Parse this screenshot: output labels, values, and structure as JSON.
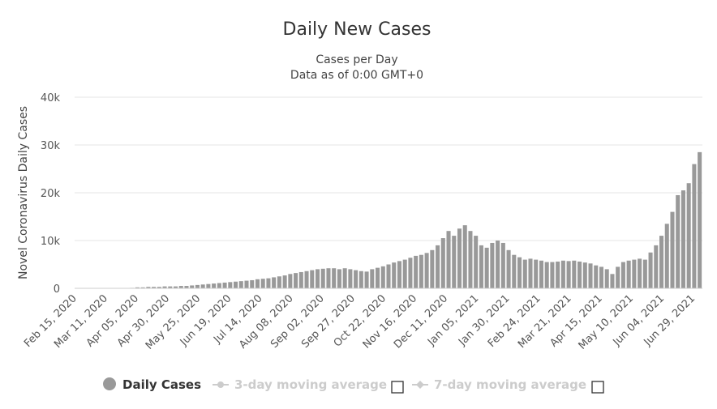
{
  "chart_data": {
    "type": "bar",
    "title": "Daily New Cases",
    "subtitle": "Cases per Day",
    "subtitle2": "Data as of 0:00 GMT+0",
    "ylabel": "Novel Coronavirus Daily Cases",
    "xlabel": "",
    "ylim": [
      0,
      40000
    ],
    "grid": true,
    "y_ticks": [
      {
        "value": 0,
        "label": "0"
      },
      {
        "value": 10000,
        "label": "10k"
      },
      {
        "value": 20000,
        "label": "20k"
      },
      {
        "value": 30000,
        "label": "30k"
      },
      {
        "value": 40000,
        "label": "40k"
      }
    ],
    "x_tick_labels": [
      "Feb 15, 2020",
      "Mar 11, 2020",
      "Apr 05, 2020",
      "Apr 30, 2020",
      "May 25, 2020",
      "Jun 19, 2020",
      "Jul 14, 2020",
      "Aug 08, 2020",
      "Sep 02, 2020",
      "Sep 27, 2020",
      "Oct 22, 2020",
      "Nov 16, 2020",
      "Dec 11, 2020",
      "Jan 05, 2021",
      "Jan 30, 2021",
      "Feb 24, 2021",
      "Mar 21, 2021",
      "Apr 15, 2021",
      "May 10, 2021",
      "Jun 04, 2021",
      "Jun 29, 2021"
    ],
    "series": [
      {
        "name": "Daily Cases",
        "color": "#999999",
        "start_date": "Feb 15, 2020",
        "interval_days": 5,
        "values": [
          0,
          0,
          0,
          0,
          0,
          0,
          0,
          0,
          0,
          0,
          100,
          200,
          200,
          300,
          300,
          300,
          400,
          400,
          400,
          500,
          500,
          600,
          700,
          800,
          900,
          1000,
          1100,
          1200,
          1300,
          1400,
          1500,
          1600,
          1700,
          1900,
          2000,
          2100,
          2300,
          2500,
          2700,
          3000,
          3200,
          3400,
          3600,
          3800,
          4000,
          4100,
          4200,
          4200,
          4000,
          4200,
          4000,
          3800,
          3600,
          3500,
          4000,
          4300,
          4600,
          5000,
          5400,
          5700,
          6000,
          6400,
          6800,
          7000,
          7400,
          8000,
          9000,
          10500,
          12000,
          11000,
          12500,
          13200,
          12000,
          11000,
          9000,
          8500,
          9500,
          10000,
          9500,
          8000,
          7000,
          6500,
          6000,
          6200,
          6000,
          5800,
          5500,
          5500,
          5600,
          5800,
          5700,
          5800,
          5600,
          5400,
          5200,
          4800,
          4500,
          4000,
          3000,
          4500,
          5500,
          5800,
          6000,
          6200,
          6000,
          7500,
          9000,
          11000,
          13500,
          16000,
          19500,
          20500,
          22000,
          26000,
          28500
        ]
      }
    ]
  },
  "legend": {
    "items": [
      {
        "label": "Daily Cases",
        "active": true
      },
      {
        "label": "3-day moving average",
        "active": false
      },
      {
        "label": "7-day moving average",
        "active": false
      }
    ]
  }
}
